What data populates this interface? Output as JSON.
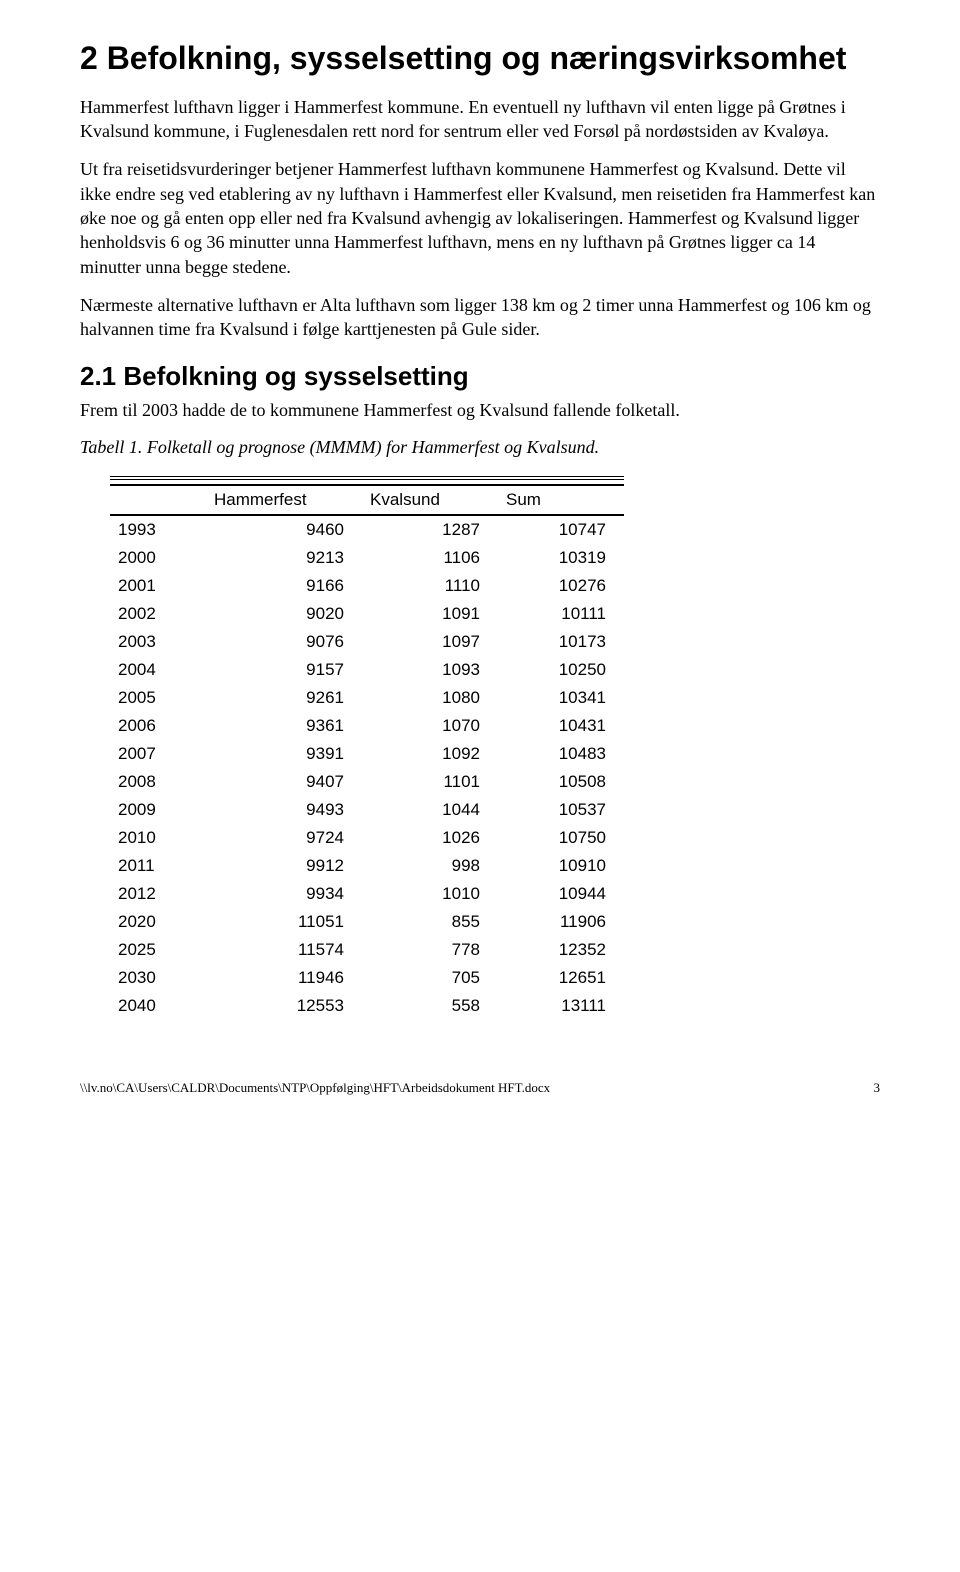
{
  "heading": "2  Befolkning, sysselsetting og næringsvirksomhet",
  "para1": "Hammerfest lufthavn ligger i Hammerfest kommune. En eventuell ny lufthavn vil enten ligge på Grøtnes i Kvalsund kommune, i Fuglenesdalen rett nord for sentrum eller ved Forsøl på nordøstsiden av Kvaløya.",
  "para2": "Ut fra reisetidsvurderinger betjener Hammerfest lufthavn kommunene Hammerfest og Kvalsund. Dette vil ikke endre seg ved etablering av ny lufthavn i Hammerfest eller Kvalsund, men reisetiden fra Hammerfest kan øke noe og gå enten opp eller ned fra Kvalsund avhengig av lokaliseringen. Hammerfest og Kvalsund ligger henholdsvis 6 og 36 minutter unna Hammerfest lufthavn, mens en ny lufthavn på Grøtnes ligger ca 14 minutter unna begge stedene.",
  "para3": "Nærmeste alternative lufthavn er Alta lufthavn som ligger 138 km og 2 timer unna Hammerfest og 106 km og halvannen time fra Kvalsund i følge karttjenesten på Gule sider.",
  "subheading": "2.1  Befolkning og sysselsetting",
  "para4": "Frem til 2003 hadde de to kommunene Hammerfest og Kvalsund fallende folketall.",
  "caption": "Tabell 1. Folketall og prognose (MMMM) for Hammerfest og Kvalsund.",
  "table": {
    "columns": [
      "",
      "Hammerfest",
      "Kvalsund",
      "Sum"
    ],
    "rows": [
      [
        "1993",
        "9460",
        "1287",
        "10747"
      ],
      [
        "2000",
        "9213",
        "1106",
        "10319"
      ],
      [
        "2001",
        "9166",
        "1110",
        "10276"
      ],
      [
        "2002",
        "9020",
        "1091",
        "10111"
      ],
      [
        "2003",
        "9076",
        "1097",
        "10173"
      ],
      [
        "2004",
        "9157",
        "1093",
        "10250"
      ],
      [
        "2005",
        "9261",
        "1080",
        "10341"
      ],
      [
        "2006",
        "9361",
        "1070",
        "10431"
      ],
      [
        "2007",
        "9391",
        "1092",
        "10483"
      ],
      [
        "2008",
        "9407",
        "1101",
        "10508"
      ],
      [
        "2009",
        "9493",
        "1044",
        "10537"
      ],
      [
        "2010",
        "9724",
        "1026",
        "10750"
      ],
      [
        "2011",
        "9912",
        "998",
        "10910"
      ],
      [
        "2012",
        "9934",
        "1010",
        "10944"
      ],
      [
        "2020",
        "11051",
        "855",
        "11906"
      ],
      [
        "2025",
        "11574",
        "778",
        "12352"
      ],
      [
        "2030",
        "11946",
        "705",
        "12651"
      ],
      [
        "2040",
        "12553",
        "558",
        "13111"
      ]
    ]
  },
  "footer_path": "\\\\lv.no\\CA\\Users\\CALDR\\Documents\\NTP\\Oppfølging\\HFT\\Arbeidsdokument HFT.docx",
  "footer_page": "3"
}
